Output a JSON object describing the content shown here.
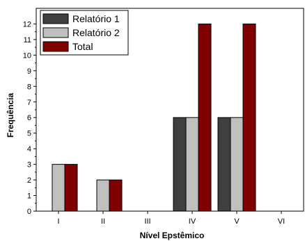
{
  "chart_data": {
    "type": "bar",
    "title": "",
    "xlabel": "Nível Epstêmico",
    "ylabel": "Frequência",
    "categories": [
      "I",
      "II",
      "III",
      "IV",
      "V",
      "VI"
    ],
    "series": [
      {
        "name": "Relatório 1",
        "color": "#3f3f3f",
        "values": [
          0,
          0,
          0,
          6,
          6,
          0
        ]
      },
      {
        "name": "Relatório 2",
        "color": "#c0c0c0",
        "values": [
          3,
          2,
          0,
          6,
          6,
          0
        ]
      },
      {
        "name": "Total",
        "color": "#800000",
        "values": [
          3,
          2,
          0,
          12,
          12,
          0
        ]
      }
    ],
    "ylim": [
      0,
      13
    ],
    "yticks": [
      0,
      1,
      2,
      3,
      4,
      5,
      6,
      7,
      8,
      9,
      10,
      11,
      12
    ],
    "grid": false,
    "legend_position": "top-left"
  }
}
